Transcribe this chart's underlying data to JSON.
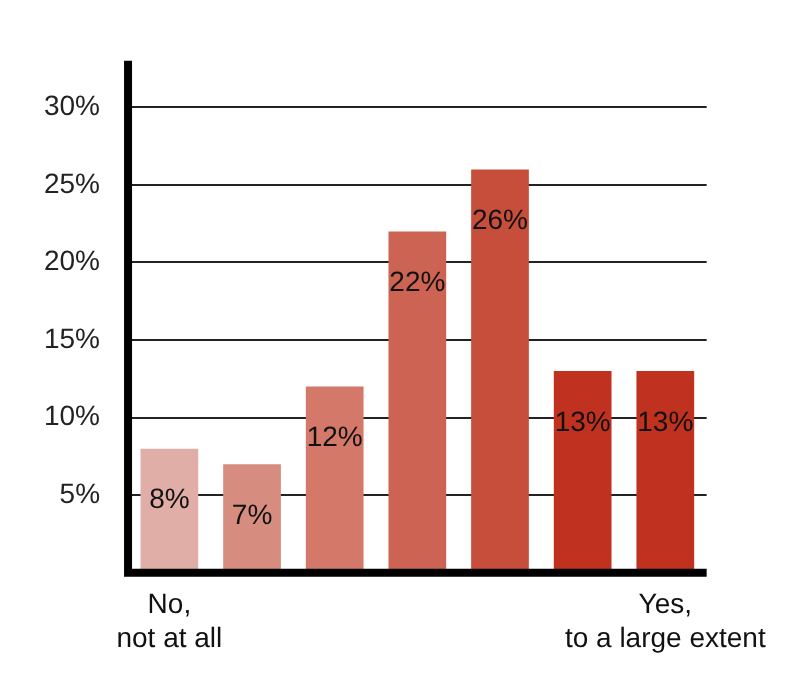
{
  "chart_data": {
    "type": "bar",
    "categories": [
      "No, not at all",
      null,
      null,
      null,
      null,
      null,
      "Yes, to a large extent"
    ],
    "values": [
      8,
      7,
      12,
      22,
      26,
      13,
      13
    ],
    "colors": [
      "#e0aea6",
      "#d68d80",
      "#d4786a",
      "#cd6453",
      "#c84e3c",
      "#c0321f",
      "#c0321f"
    ],
    "ylim": [
      0,
      33
    ],
    "yticks": [
      {
        "value": 5,
        "label": "5%"
      },
      {
        "value": 10,
        "label": "10%"
      },
      {
        "value": 15,
        "label": "15%"
      },
      {
        "value": 20,
        "label": "20%"
      },
      {
        "value": 25,
        "label": "25%"
      },
      {
        "value": 30,
        "label": "30%"
      }
    ],
    "value_labels": [
      "8%",
      "7%",
      "12%",
      "22%",
      "26%",
      "13%",
      "13%"
    ],
    "grid": "y",
    "legend": false
  }
}
